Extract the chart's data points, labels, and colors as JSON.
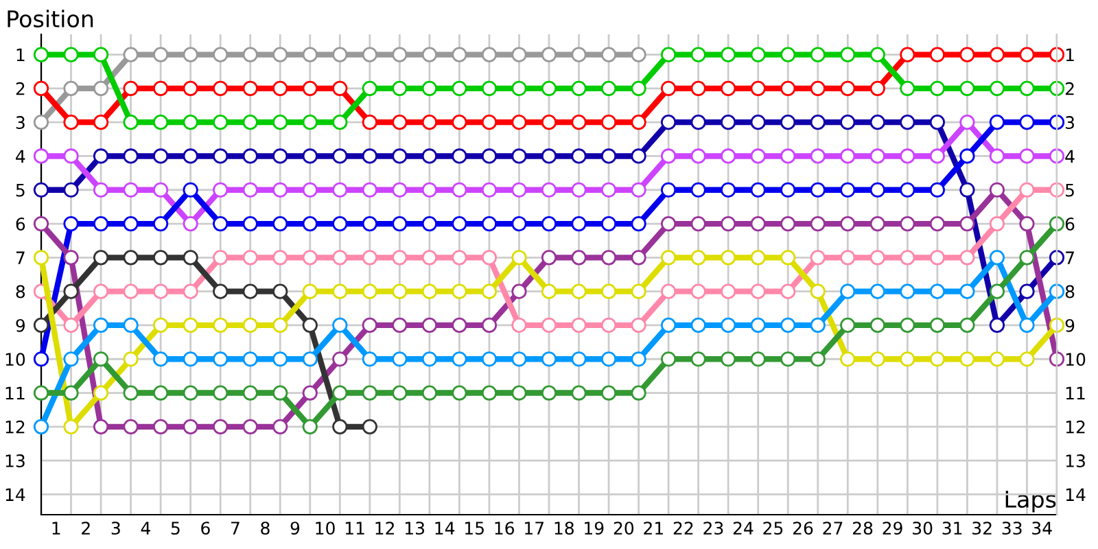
{
  "chart_data": {
    "type": "line",
    "xlabel": "Laps",
    "ylabel": "Position",
    "x": [
      0,
      1,
      2,
      3,
      4,
      5,
      6,
      7,
      8,
      9,
      10,
      11,
      12,
      13,
      14,
      15,
      16,
      17,
      18,
      19,
      20,
      21,
      22,
      23,
      24,
      25,
      26,
      27,
      28,
      29,
      30,
      31,
      32,
      33,
      34
    ],
    "xlim": [
      0,
      34
    ],
    "ylim": [
      14.6,
      0.4
    ],
    "xticks": [
      {
        "value": 0,
        "label": null
      },
      {
        "value": 0.5,
        "label": "1"
      },
      {
        "value": 1,
        "label": null
      },
      {
        "value": 1.5,
        "label": "2"
      },
      {
        "value": 2,
        "label": null
      },
      {
        "value": 2.5,
        "label": "3"
      },
      {
        "value": 3,
        "label": null
      },
      {
        "value": 3.5,
        "label": "4"
      },
      {
        "value": 4,
        "label": null
      },
      {
        "value": 4.5,
        "label": "5"
      },
      {
        "value": 5,
        "label": null
      },
      {
        "value": 5.5,
        "label": "6"
      },
      {
        "value": 6,
        "label": null
      },
      {
        "value": 6.5,
        "label": "7"
      },
      {
        "value": 7,
        "label": null
      },
      {
        "value": 7.5,
        "label": "8"
      },
      {
        "value": 8,
        "label": null
      },
      {
        "value": 8.5,
        "label": "9"
      },
      {
        "value": 9,
        "label": null
      },
      {
        "value": 9.5,
        "label": "10"
      },
      {
        "value": 10,
        "label": null
      },
      {
        "value": 10.5,
        "label": "11"
      },
      {
        "value": 11,
        "label": null
      },
      {
        "value": 11.5,
        "label": "12"
      },
      {
        "value": 12,
        "label": null
      },
      {
        "value": 12.5,
        "label": "13"
      },
      {
        "value": 13,
        "label": null
      },
      {
        "value": 13.5,
        "label": "14"
      },
      {
        "value": 14,
        "label": null
      },
      {
        "value": 14.5,
        "label": "15"
      },
      {
        "value": 15,
        "label": null
      },
      {
        "value": 15.5,
        "label": "16"
      },
      {
        "value": 16,
        "label": null
      },
      {
        "value": 16.5,
        "label": "17"
      },
      {
        "value": 17,
        "label": null
      },
      {
        "value": 17.5,
        "label": "18"
      },
      {
        "value": 18,
        "label": null
      },
      {
        "value": 18.5,
        "label": "19"
      },
      {
        "value": 19,
        "label": null
      },
      {
        "value": 19.5,
        "label": "20"
      },
      {
        "value": 20,
        "label": null
      },
      {
        "value": 20.5,
        "label": "21"
      },
      {
        "value": 21,
        "label": null
      },
      {
        "value": 21.5,
        "label": "22"
      },
      {
        "value": 22,
        "label": null
      },
      {
        "value": 22.5,
        "label": "23"
      },
      {
        "value": 23,
        "label": null
      },
      {
        "value": 23.5,
        "label": "24"
      },
      {
        "value": 24,
        "label": null
      },
      {
        "value": 24.5,
        "label": "25"
      },
      {
        "value": 25,
        "label": null
      },
      {
        "value": 25.5,
        "label": "26"
      },
      {
        "value": 26,
        "label": null
      },
      {
        "value": 26.5,
        "label": "27"
      },
      {
        "value": 27,
        "label": null
      },
      {
        "value": 27.5,
        "label": "28"
      },
      {
        "value": 28,
        "label": null
      },
      {
        "value": 28.5,
        "label": "29"
      },
      {
        "value": 29,
        "label": null
      },
      {
        "value": 29.5,
        "label": "30"
      },
      {
        "value": 30,
        "label": null
      },
      {
        "value": 30.5,
        "label": "31"
      },
      {
        "value": 31,
        "label": null
      },
      {
        "value": 31.5,
        "label": "32"
      },
      {
        "value": 32,
        "label": null
      },
      {
        "value": 32.5,
        "label": "33"
      },
      {
        "value": 33,
        "label": null
      },
      {
        "value": 33.5,
        "label": "34"
      },
      {
        "value": 34,
        "label": null
      }
    ],
    "yticks": [
      1,
      2,
      3,
      4,
      5,
      6,
      7,
      8,
      9,
      10,
      11,
      12,
      13,
      14
    ],
    "y2lim": [
      14.6,
      0.4
    ],
    "y2ticks": [
      1,
      2,
      3,
      4,
      5,
      6,
      7,
      8,
      9,
      10,
      11,
      12,
      13,
      14
    ],
    "grid": true,
    "marker": "circle",
    "line_style": "solid",
    "legend": false,
    "series": [
      {
        "color": "#999999",
        "values": [
          3,
          2,
          2,
          1,
          1,
          1,
          1,
          1,
          1,
          1,
          1,
          1,
          1,
          1,
          1,
          1,
          1,
          1,
          1,
          1,
          1,
          null,
          null,
          null,
          null,
          null,
          null,
          null,
          null,
          null,
          null,
          null,
          null,
          null,
          null
        ]
      },
      {
        "color": "#ff0000",
        "values": [
          2,
          3,
          3,
          2,
          2,
          2,
          2,
          2,
          2,
          2,
          2,
          3,
          3,
          3,
          3,
          3,
          3,
          3,
          3,
          3,
          3,
          2,
          2,
          2,
          2,
          2,
          2,
          2,
          2,
          1,
          1,
          1,
          1,
          1,
          1
        ]
      },
      {
        "color": "#00cc00",
        "values": [
          1,
          1,
          1,
          3,
          3,
          3,
          3,
          3,
          3,
          3,
          3,
          2,
          2,
          2,
          2,
          2,
          2,
          2,
          2,
          2,
          2,
          1,
          1,
          1,
          1,
          1,
          1,
          1,
          1,
          2,
          2,
          2,
          2,
          2,
          2
        ]
      },
      {
        "color": "#1100aa",
        "values": [
          5,
          5,
          4,
          4,
          4,
          4,
          4,
          4,
          4,
          4,
          4,
          4,
          4,
          4,
          4,
          4,
          4,
          4,
          4,
          4,
          4,
          3,
          3,
          3,
          3,
          3,
          3,
          3,
          3,
          3,
          3,
          5,
          9,
          8,
          7
        ]
      },
      {
        "color": "#cc44ff",
        "values": [
          4,
          4,
          5,
          5,
          5,
          6,
          5,
          5,
          5,
          5,
          5,
          5,
          5,
          5,
          5,
          5,
          5,
          5,
          5,
          5,
          5,
          4,
          4,
          4,
          4,
          4,
          4,
          4,
          4,
          4,
          4,
          3,
          4,
          4,
          4
        ]
      },
      {
        "color": "#0000ee",
        "values": [
          10,
          6,
          6,
          6,
          6,
          5,
          6,
          6,
          6,
          6,
          6,
          6,
          6,
          6,
          6,
          6,
          6,
          6,
          6,
          6,
          6,
          5,
          5,
          5,
          5,
          5,
          5,
          5,
          5,
          5,
          5,
          4,
          3,
          3,
          3
        ]
      },
      {
        "color": "#993399",
        "values": [
          6,
          7,
          12,
          12,
          12,
          12,
          12,
          12,
          12,
          11,
          10,
          9,
          9,
          9,
          9,
          9,
          8,
          7,
          7,
          7,
          7,
          6,
          6,
          6,
          6,
          6,
          6,
          6,
          6,
          6,
          6,
          6,
          5,
          6,
          10
        ]
      },
      {
        "color": "#ff88aa",
        "values": [
          8,
          9,
          8,
          8,
          8,
          8,
          7,
          7,
          7,
          7,
          7,
          7,
          7,
          7,
          7,
          7,
          9,
          9,
          9,
          9,
          9,
          8,
          8,
          8,
          8,
          8,
          7,
          7,
          7,
          7,
          7,
          7,
          6,
          5,
          5
        ]
      },
      {
        "color": "#333333",
        "values": [
          9,
          8,
          7,
          7,
          7,
          7,
          8,
          8,
          8,
          9,
          12,
          12,
          null,
          null,
          null,
          null,
          null,
          null,
          null,
          null,
          null,
          null,
          null,
          null,
          null,
          null,
          null,
          null,
          null,
          null,
          null,
          null,
          null,
          null,
          null
        ]
      },
      {
        "color": "#dddd00",
        "values": [
          7,
          12,
          11,
          10,
          9,
          9,
          9,
          9,
          9,
          8,
          8,
          8,
          8,
          8,
          8,
          8,
          7,
          8,
          8,
          8,
          8,
          7,
          7,
          7,
          7,
          7,
          8,
          10,
          10,
          10,
          10,
          10,
          10,
          10,
          9
        ]
      },
      {
        "color": "#0099ff",
        "values": [
          12,
          10,
          9,
          9,
          10,
          10,
          10,
          10,
          10,
          10,
          9,
          10,
          10,
          10,
          10,
          10,
          10,
          10,
          10,
          10,
          10,
          9,
          9,
          9,
          9,
          9,
          9,
          8,
          8,
          8,
          8,
          8,
          7,
          9,
          8
        ]
      },
      {
        "color": "#339933",
        "values": [
          11,
          11,
          10,
          11,
          11,
          11,
          11,
          11,
          11,
          12,
          11,
          11,
          11,
          11,
          11,
          11,
          11,
          11,
          11,
          11,
          11,
          10,
          10,
          10,
          10,
          10,
          10,
          9,
          9,
          9,
          9,
          9,
          8,
          7,
          6
        ]
      }
    ]
  }
}
